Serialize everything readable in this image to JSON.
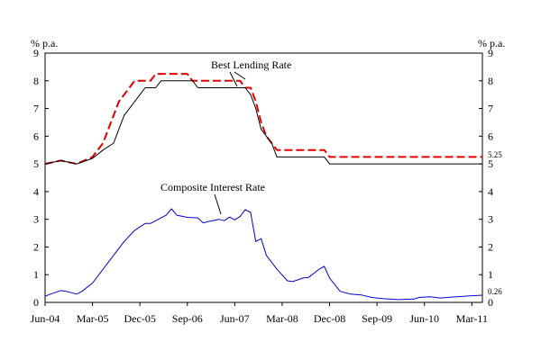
{
  "chart_data": {
    "type": "line",
    "left_unit": "% p.a.",
    "right_unit": "% p.a.",
    "ylim": [
      0,
      9
    ],
    "yticks": [
      0,
      1,
      2,
      3,
      4,
      5,
      6,
      7,
      8,
      9
    ],
    "x_range": [
      "2004-06",
      "2011-05"
    ],
    "xticks": [
      "Jun-04",
      "Mar-05",
      "Dec-05",
      "Sep-06",
      "Jun-07",
      "Mar-08",
      "Dec-08",
      "Sep-09",
      "Jun-10",
      "Mar-11"
    ],
    "grid": false,
    "colors": {
      "blr_red": "#e00000",
      "blr_black": "#000000",
      "cir": "#0000cc"
    },
    "annotations": {
      "blr": "Best Lending Rate",
      "cir": "Composite Interest Rate",
      "blr_end": "5.25",
      "cir_end": "0.26"
    },
    "series": [
      {
        "key": "blr_red",
        "style": "dashed",
        "values": [
          [
            "2004-06",
            5.0
          ],
          [
            "2004-09",
            5.12
          ],
          [
            "2004-12",
            5.0
          ],
          [
            "2005-03",
            5.25
          ],
          [
            "2005-04",
            5.5
          ],
          [
            "2005-05",
            5.75
          ],
          [
            "2005-06",
            6.25
          ],
          [
            "2005-07",
            6.75
          ],
          [
            "2005-08",
            7.25
          ],
          [
            "2005-09",
            7.5
          ],
          [
            "2005-10",
            7.75
          ],
          [
            "2005-11",
            8.0
          ],
          [
            "2006-02",
            8.0
          ],
          [
            "2006-03",
            8.25
          ],
          [
            "2006-09",
            8.25
          ],
          [
            "2006-10",
            8.0
          ],
          [
            "2007-07",
            8.0
          ],
          [
            "2007-08",
            7.75
          ],
          [
            "2007-09",
            7.75
          ],
          [
            "2007-10",
            7.25
          ],
          [
            "2007-11",
            6.5
          ],
          [
            "2007-12",
            6.0
          ],
          [
            "2008-01",
            5.75
          ],
          [
            "2008-02",
            5.5
          ],
          [
            "2008-11",
            5.5
          ],
          [
            "2008-12",
            5.25
          ],
          [
            "2011-05",
            5.25
          ]
        ]
      },
      {
        "key": "blr_black",
        "style": "solid",
        "values": [
          [
            "2004-06",
            5.0
          ],
          [
            "2004-09",
            5.12
          ],
          [
            "2004-12",
            5.0
          ],
          [
            "2005-03",
            5.2
          ],
          [
            "2005-05",
            5.5
          ],
          [
            "2005-07",
            5.75
          ],
          [
            "2005-08",
            6.25
          ],
          [
            "2005-09",
            6.75
          ],
          [
            "2005-10",
            7.0
          ],
          [
            "2005-12",
            7.5
          ],
          [
            "2006-01",
            7.75
          ],
          [
            "2006-03",
            7.75
          ],
          [
            "2006-04",
            8.0
          ],
          [
            "2006-10",
            8.0
          ],
          [
            "2006-11",
            7.75
          ],
          [
            "2007-08",
            7.75
          ],
          [
            "2007-09",
            7.5
          ],
          [
            "2007-10",
            7.0
          ],
          [
            "2007-11",
            6.25
          ],
          [
            "2007-12",
            6.0
          ],
          [
            "2008-01",
            5.75
          ],
          [
            "2008-02",
            5.25
          ],
          [
            "2008-11",
            5.25
          ],
          [
            "2008-12",
            5.0
          ],
          [
            "2011-05",
            5.0
          ]
        ]
      },
      {
        "key": "cir",
        "style": "solid",
        "values": [
          [
            "2004-06",
            0.22
          ],
          [
            "2004-07",
            0.3
          ],
          [
            "2004-09",
            0.43
          ],
          [
            "2004-10",
            0.4
          ],
          [
            "2004-12",
            0.3
          ],
          [
            "2005-01",
            0.4
          ],
          [
            "2005-03",
            0.7
          ],
          [
            "2005-05",
            1.2
          ],
          [
            "2005-07",
            1.7
          ],
          [
            "2005-09",
            2.2
          ],
          [
            "2005-11",
            2.6
          ],
          [
            "2006-01",
            2.85
          ],
          [
            "2006-02",
            2.85
          ],
          [
            "2006-04",
            3.05
          ],
          [
            "2006-05",
            3.15
          ],
          [
            "2006-06",
            3.38
          ],
          [
            "2006-07",
            3.15
          ],
          [
            "2006-09",
            3.07
          ],
          [
            "2006-11",
            3.05
          ],
          [
            "2006-12",
            2.87
          ],
          [
            "2007-01",
            2.92
          ],
          [
            "2007-03",
            3.0
          ],
          [
            "2007-04",
            2.95
          ],
          [
            "2007-05",
            3.08
          ],
          [
            "2007-06",
            2.98
          ],
          [
            "2007-07",
            3.1
          ],
          [
            "2007-08",
            3.35
          ],
          [
            "2007-09",
            3.25
          ],
          [
            "2007-10",
            2.2
          ],
          [
            "2007-11",
            2.3
          ],
          [
            "2007-12",
            1.7
          ],
          [
            "2008-02",
            1.2
          ],
          [
            "2008-04",
            0.78
          ],
          [
            "2008-05",
            0.75
          ],
          [
            "2008-07",
            0.88
          ],
          [
            "2008-08",
            0.9
          ],
          [
            "2008-10",
            1.2
          ],
          [
            "2008-11",
            1.3
          ],
          [
            "2008-12",
            0.88
          ],
          [
            "2009-02",
            0.4
          ],
          [
            "2009-04",
            0.3
          ],
          [
            "2009-06",
            0.27
          ],
          [
            "2009-08",
            0.18
          ],
          [
            "2009-10",
            0.14
          ],
          [
            "2010-01",
            0.1
          ],
          [
            "2010-04",
            0.12
          ],
          [
            "2010-05",
            0.18
          ],
          [
            "2010-07",
            0.2
          ],
          [
            "2010-09",
            0.16
          ],
          [
            "2010-12",
            0.2
          ],
          [
            "2011-03",
            0.24
          ],
          [
            "2011-05",
            0.26
          ]
        ]
      }
    ]
  }
}
